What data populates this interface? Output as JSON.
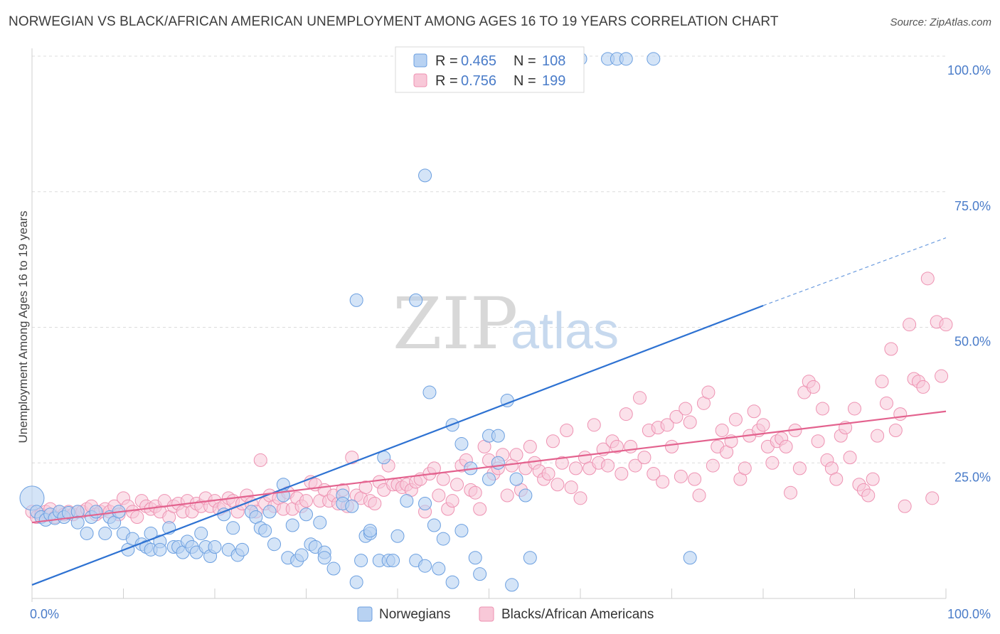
{
  "header": {
    "title": "NORWEGIAN VS BLACK/AFRICAN AMERICAN UNEMPLOYMENT AMONG AGES 16 TO 19 YEARS CORRELATION CHART",
    "source": "Source: ZipAtlas.com"
  },
  "watermark": {
    "zip": "ZIP",
    "atlas": "atlas"
  },
  "legend": {
    "rows": [
      {
        "r_label": "R =",
        "r_value": "0.465",
        "n_label": "N =",
        "n_value": "108",
        "color": "#8db6e8"
      },
      {
        "r_label": "R =",
        "r_value": "0.756",
        "n_label": "N =",
        "n_value": "199",
        "color": "#f2a7bf"
      }
    ]
  },
  "bottom_legend": {
    "items": [
      "Norwegians",
      "Blacks/African Americans"
    ]
  },
  "chart_data": {
    "type": "scatter",
    "title": "NORWEGIAN VS BLACK/AFRICAN AMERICAN UNEMPLOYMENT AMONG AGES 16 TO 19 YEARS CORRELATION CHART",
    "xlabel": "",
    "ylabel": "Unemployment Among Ages 16 to 19 years",
    "xlim": [
      0,
      100
    ],
    "ylim": [
      0,
      100
    ],
    "x_tick_labels": [
      "0.0%",
      "100.0%"
    ],
    "y_ticks": [
      25,
      50,
      75,
      100
    ],
    "y_tick_labels": [
      "25.0%",
      "50.0%",
      "75.0%",
      "100.0%"
    ],
    "grid": true,
    "legend_position": "top-center",
    "colors": {
      "blue_fill": "#b8d2f2",
      "blue_stroke": "#6b9fe0",
      "blue_line": "#2e72d2",
      "pink_fill": "#f8c8d8",
      "pink_stroke": "#ee92b2",
      "pink_line": "#e3628e"
    },
    "series": [
      {
        "name": "Norwegians",
        "r": 0.465,
        "n": 108,
        "trend": {
          "x0": 0,
          "y0": 2.5,
          "x1": 80,
          "y1": 54,
          "dash_to_x": 100,
          "dash_to_y": 66.5
        },
        "points": [
          [
            0,
            18.5
          ],
          [
            0.5,
            16
          ],
          [
            1,
            15
          ],
          [
            1.5,
            14.5
          ],
          [
            2,
            15.5
          ],
          [
            2.5,
            14.8
          ],
          [
            3,
            16
          ],
          [
            3.5,
            15
          ],
          [
            4,
            15.8
          ],
          [
            5,
            16
          ],
          [
            5,
            14
          ],
          [
            6,
            12
          ],
          [
            6.5,
            15
          ],
          [
            7,
            16
          ],
          [
            8,
            12
          ],
          [
            8.5,
            15
          ],
          [
            9,
            14
          ],
          [
            9.5,
            16
          ],
          [
            10,
            12
          ],
          [
            10.5,
            9
          ],
          [
            11,
            11
          ],
          [
            12,
            10
          ],
          [
            12.5,
            9.5
          ],
          [
            13,
            9
          ],
          [
            13,
            12
          ],
          [
            14,
            10.5
          ],
          [
            14,
            9
          ],
          [
            15,
            13
          ],
          [
            15.5,
            9.5
          ],
          [
            16,
            9.5
          ],
          [
            16.5,
            8.5
          ],
          [
            17,
            10.5
          ],
          [
            17.5,
            9.5
          ],
          [
            18,
            8.5
          ],
          [
            18.5,
            12
          ],
          [
            19,
            9.5
          ],
          [
            19.5,
            7.8
          ],
          [
            20,
            9.5
          ],
          [
            21,
            15.5
          ],
          [
            21.5,
            9
          ],
          [
            22,
            13
          ],
          [
            22.5,
            8
          ],
          [
            23,
            9
          ],
          [
            24,
            16
          ],
          [
            24.5,
            15
          ],
          [
            25,
            13
          ],
          [
            25.5,
            12.5
          ],
          [
            26,
            16
          ],
          [
            26.5,
            10
          ],
          [
            27.5,
            21
          ],
          [
            27.5,
            19
          ],
          [
            28,
            7.5
          ],
          [
            28.5,
            13.5
          ],
          [
            29,
            7
          ],
          [
            29.5,
            8
          ],
          [
            30,
            15.5
          ],
          [
            30.5,
            10
          ],
          [
            31,
            9.5
          ],
          [
            31.5,
            14
          ],
          [
            32,
            8.5
          ],
          [
            32,
            7.5
          ],
          [
            33,
            5.5
          ],
          [
            34,
            19
          ],
          [
            34,
            17.5
          ],
          [
            35,
            17
          ],
          [
            35.5,
            55
          ],
          [
            35.5,
            3
          ],
          [
            36,
            7
          ],
          [
            36.5,
            11.5
          ],
          [
            37,
            12
          ],
          [
            37,
            12.5
          ],
          [
            38,
            7
          ],
          [
            38.5,
            26
          ],
          [
            39,
            7
          ],
          [
            39.5,
            7
          ],
          [
            40,
            11.5
          ],
          [
            41,
            18
          ],
          [
            42,
            7
          ],
          [
            42,
            55
          ],
          [
            43,
            17.5
          ],
          [
            43,
            78
          ],
          [
            43,
            6
          ],
          [
            43.5,
            38
          ],
          [
            44,
            13.5
          ],
          [
            44.5,
            5.5
          ],
          [
            45,
            11
          ],
          [
            46,
            32
          ],
          [
            46,
            3
          ],
          [
            47,
            28.5
          ],
          [
            47,
            12.5
          ],
          [
            48,
            24
          ],
          [
            48.5,
            7.5
          ],
          [
            49,
            4.5
          ],
          [
            50,
            22
          ],
          [
            50,
            30
          ],
          [
            51,
            30
          ],
          [
            51,
            25
          ],
          [
            52,
            36.5
          ],
          [
            52.5,
            2.5
          ],
          [
            53,
            22
          ],
          [
            54,
            19
          ],
          [
            54.5,
            7.5
          ],
          [
            58,
            99.5
          ],
          [
            60,
            99.5
          ],
          [
            63,
            99.5
          ],
          [
            64,
            99.5
          ],
          [
            65,
            99.5
          ],
          [
            68,
            99.5
          ],
          [
            72,
            7.5
          ]
        ]
      },
      {
        "name": "Blacks/African Americans",
        "r": 0.756,
        "n": 199,
        "trend": {
          "x0": 0,
          "y0": 14,
          "x1": 100,
          "y1": 34.5
        },
        "points": [
          [
            0,
            16
          ],
          [
            0.5,
            15
          ],
          [
            1,
            15.5
          ],
          [
            1.5,
            16
          ],
          [
            2,
            16.5
          ],
          [
            2.5,
            15
          ],
          [
            3,
            16
          ],
          [
            3.5,
            15.5
          ],
          [
            4,
            16
          ],
          [
            4.5,
            15.5
          ],
          [
            5,
            16
          ],
          [
            5.5,
            16
          ],
          [
            6,
            16.5
          ],
          [
            6.5,
            17
          ],
          [
            7,
            15.5
          ],
          [
            7.5,
            16
          ],
          [
            8,
            16.5
          ],
          [
            8.5,
            16
          ],
          [
            9,
            17
          ],
          [
            9.5,
            15.5
          ],
          [
            10,
            18.5
          ],
          [
            10.5,
            17
          ],
          [
            11,
            16
          ],
          [
            11.5,
            15
          ],
          [
            12,
            18
          ],
          [
            12.5,
            17
          ],
          [
            13,
            16.5
          ],
          [
            13.5,
            17
          ],
          [
            14,
            16
          ],
          [
            14.5,
            18
          ],
          [
            15,
            15
          ],
          [
            15.5,
            17
          ],
          [
            16,
            17.5
          ],
          [
            16.5,
            16
          ],
          [
            17,
            18
          ],
          [
            17.5,
            16
          ],
          [
            18,
            17.5
          ],
          [
            18.5,
            17
          ],
          [
            19,
            18.5
          ],
          [
            19.5,
            17
          ],
          [
            20,
            18
          ],
          [
            20.5,
            16.5
          ],
          [
            21,
            17
          ],
          [
            21.5,
            18.5
          ],
          [
            22,
            18
          ],
          [
            22.5,
            16
          ],
          [
            23,
            17.5
          ],
          [
            23.5,
            19
          ],
          [
            24,
            17.5
          ],
          [
            24.5,
            16
          ],
          [
            25,
            25.5
          ],
          [
            25.5,
            17.5
          ],
          [
            26,
            19
          ],
          [
            26.5,
            17
          ],
          [
            27,
            18.5
          ],
          [
            27.5,
            16.5
          ],
          [
            28,
            19.5
          ],
          [
            28.5,
            16.5
          ],
          [
            29,
            18.5
          ],
          [
            29.5,
            17
          ],
          [
            30,
            18
          ],
          [
            30.5,
            21.5
          ],
          [
            31,
            21
          ],
          [
            31.5,
            18
          ],
          [
            32,
            20
          ],
          [
            32.5,
            18
          ],
          [
            33,
            19
          ],
          [
            33.5,
            17.5
          ],
          [
            34,
            20
          ],
          [
            34.5,
            17
          ],
          [
            35,
            26
          ],
          [
            35.5,
            19
          ],
          [
            36,
            18.5
          ],
          [
            36.5,
            20.5
          ],
          [
            37,
            18
          ],
          [
            37.5,
            17.5
          ],
          [
            38,
            21.5
          ],
          [
            38.5,
            20
          ],
          [
            39,
            24.5
          ],
          [
            39.5,
            21
          ],
          [
            40,
            21
          ],
          [
            40.5,
            20.5
          ],
          [
            41,
            21
          ],
          [
            41.5,
            20
          ],
          [
            42,
            21.5
          ],
          [
            42.5,
            22
          ],
          [
            43,
            16
          ],
          [
            43.5,
            23
          ],
          [
            44,
            24
          ],
          [
            44.5,
            19
          ],
          [
            45,
            22
          ],
          [
            45.5,
            16.5
          ],
          [
            46,
            18
          ],
          [
            46.5,
            21
          ],
          [
            47,
            24.5
          ],
          [
            47.5,
            25.5
          ],
          [
            48,
            20
          ],
          [
            48.5,
            19.5
          ],
          [
            49,
            16.5
          ],
          [
            49.5,
            28
          ],
          [
            50,
            25.5
          ],
          [
            50.5,
            23
          ],
          [
            51,
            24
          ],
          [
            51.5,
            26.5
          ],
          [
            52,
            19
          ],
          [
            52.5,
            24.5
          ],
          [
            53,
            26.5
          ],
          [
            53.5,
            20
          ],
          [
            54,
            24
          ],
          [
            54.5,
            28
          ],
          [
            55,
            25
          ],
          [
            55.5,
            23.5
          ],
          [
            56,
            22
          ],
          [
            56.5,
            23
          ],
          [
            57,
            29
          ],
          [
            57.5,
            21
          ],
          [
            58,
            25
          ],
          [
            58.5,
            31
          ],
          [
            59,
            20.5
          ],
          [
            59.5,
            24
          ],
          [
            60,
            18.5
          ],
          [
            60.5,
            26
          ],
          [
            61,
            24
          ],
          [
            61.5,
            32
          ],
          [
            62,
            25
          ],
          [
            62.5,
            27.5
          ],
          [
            63,
            24.5
          ],
          [
            63.5,
            29
          ],
          [
            64,
            28
          ],
          [
            64.5,
            23
          ],
          [
            65,
            34
          ],
          [
            65.5,
            28
          ],
          [
            66,
            24.5
          ],
          [
            66.5,
            37
          ],
          [
            67,
            26
          ],
          [
            67.5,
            31
          ],
          [
            68,
            23
          ],
          [
            68.5,
            31.5
          ],
          [
            69,
            21.5
          ],
          [
            69.5,
            32
          ],
          [
            70,
            28
          ],
          [
            70.5,
            33.5
          ],
          [
            71,
            22.5
          ],
          [
            71.5,
            35
          ],
          [
            72,
            32.5
          ],
          [
            72.5,
            22
          ],
          [
            73,
            19
          ],
          [
            73.5,
            36
          ],
          [
            74,
            38
          ],
          [
            74.5,
            24.5
          ],
          [
            75,
            28
          ],
          [
            75.5,
            31
          ],
          [
            76,
            27
          ],
          [
            76.5,
            29
          ],
          [
            77,
            33
          ],
          [
            77.5,
            22
          ],
          [
            78,
            24
          ],
          [
            78.5,
            30
          ],
          [
            79,
            34.5
          ],
          [
            79.5,
            31
          ],
          [
            80,
            32
          ],
          [
            80.5,
            28
          ],
          [
            81,
            25
          ],
          [
            81.5,
            29
          ],
          [
            82,
            29.5
          ],
          [
            82.5,
            28
          ],
          [
            83,
            19.5
          ],
          [
            83.5,
            31
          ],
          [
            84,
            24
          ],
          [
            84.5,
            38
          ],
          [
            85,
            40
          ],
          [
            85.5,
            39
          ],
          [
            86,
            29
          ],
          [
            86.5,
            35
          ],
          [
            87,
            25.5
          ],
          [
            87.5,
            24
          ],
          [
            88,
            22
          ],
          [
            88.5,
            30
          ],
          [
            89,
            31.5
          ],
          [
            89.5,
            26
          ],
          [
            90,
            35
          ],
          [
            90.5,
            21
          ],
          [
            91,
            20
          ],
          [
            91.5,
            19
          ],
          [
            92,
            22
          ],
          [
            92.5,
            30
          ],
          [
            93,
            40
          ],
          [
            93.5,
            36
          ],
          [
            94,
            46
          ],
          [
            94.5,
            31
          ],
          [
            95,
            34
          ],
          [
            95.5,
            17
          ],
          [
            96,
            50.5
          ],
          [
            96.5,
            40.5
          ],
          [
            97,
            40
          ],
          [
            97.5,
            39
          ],
          [
            98,
            59
          ],
          [
            98.5,
            18.5
          ],
          [
            99,
            51
          ],
          [
            99.5,
            41
          ],
          [
            100,
            50.5
          ]
        ]
      }
    ]
  }
}
